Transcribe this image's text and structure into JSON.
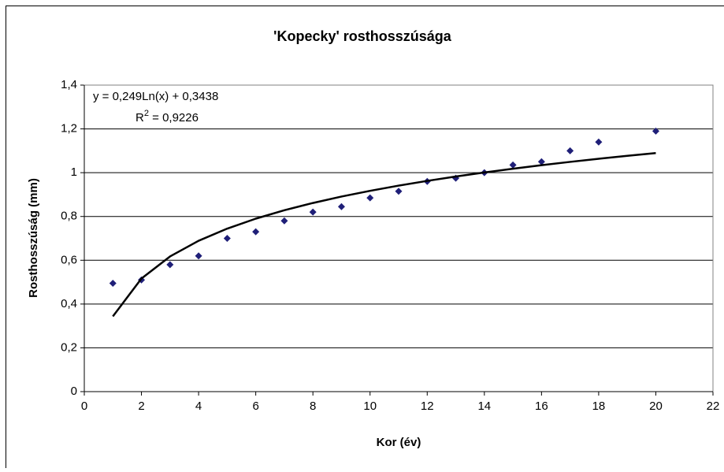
{
  "chart_data": {
    "type": "scatter",
    "title": "'Kopecky' rosthosszúsága",
    "x_label": "Kor (év)",
    "y_label": "Rosthosszúság (mm)",
    "series": [
      {
        "color": "#1f1f78",
        "marker": "diamond",
        "x": [
          1,
          2,
          3,
          4,
          5,
          6,
          7,
          8,
          9,
          10,
          11,
          12,
          13,
          14,
          15,
          16,
          17,
          18,
          20
        ],
        "values": [
          0.495,
          0.51,
          0.58,
          0.62,
          0.7,
          0.73,
          0.78,
          0.82,
          0.845,
          0.885,
          0.915,
          0.96,
          0.975,
          1.0,
          1.035,
          1.05,
          1.1,
          1.14,
          1.19
        ]
      },
      {
        "color": "#000000",
        "marker": "line",
        "x": [
          1,
          2,
          3,
          4,
          5,
          6,
          7,
          8,
          9,
          10,
          11,
          12,
          13,
          14,
          15,
          16,
          17,
          18,
          19,
          20
        ],
        "values": [
          0.3438,
          0.5164,
          0.6174,
          0.689,
          0.7445,
          0.79,
          0.8283,
          0.8616,
          0.8909,
          0.9171,
          0.9409,
          0.9625,
          0.9825,
          1.0009,
          1.0181,
          1.0342,
          1.0493,
          1.0635,
          1.077,
          1.0897
        ]
      }
    ],
    "trendline_label": {
      "equation": "y = 0,249Ln(x) + 0,3438",
      "r2_symbol": "R",
      "r2_exponent": "2",
      "r2_value": " = 0,9226"
    },
    "xlim": [
      0,
      22
    ],
    "xticks": [
      0,
      2,
      4,
      6,
      8,
      10,
      12,
      14,
      16,
      18,
      20,
      22
    ],
    "ylim": [
      0,
      1.4
    ],
    "yticks": [
      0,
      {
        "value": 0.2,
        "label": "0,2"
      },
      {
        "value": 0.4,
        "label": "0,4"
      },
      {
        "value": 0.6,
        "label": "0,6"
      },
      {
        "value": 0.8,
        "label": "0,8"
      },
      1,
      {
        "value": 1.2,
        "label": "1,2"
      },
      {
        "value": 1.4,
        "label": "1,4"
      }
    ],
    "grid": true
  }
}
